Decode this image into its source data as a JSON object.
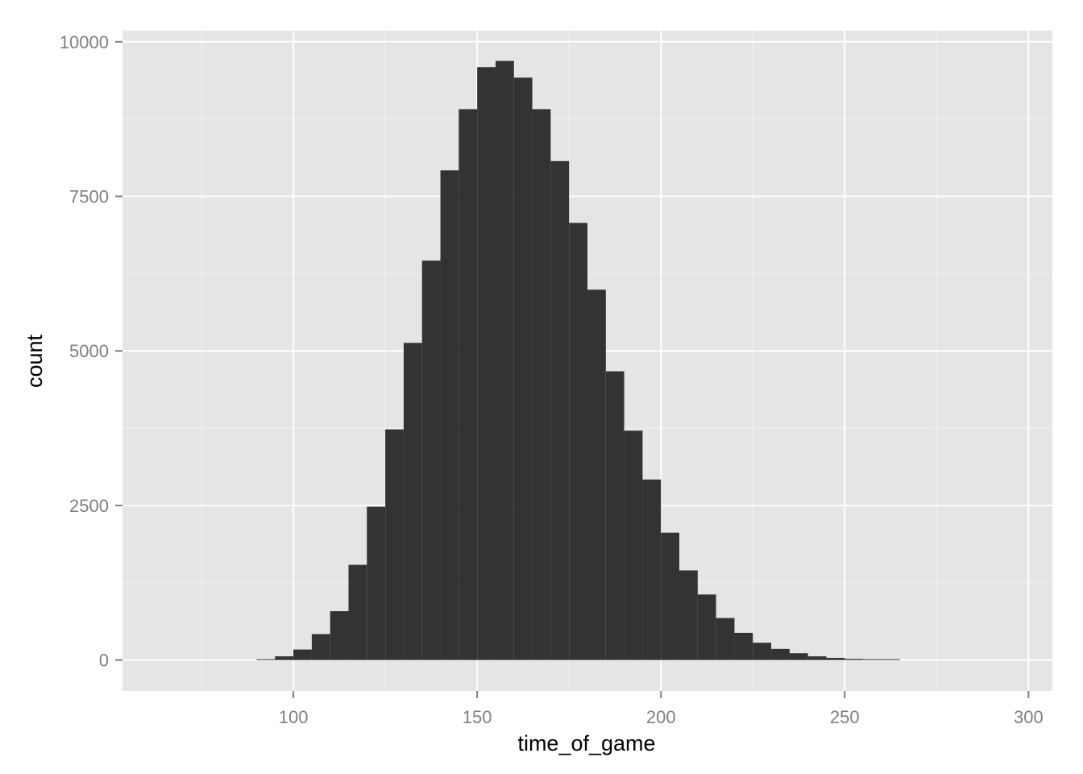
{
  "chart_data": {
    "type": "bar",
    "subtype": "histogram",
    "xlabel": "time_of_game",
    "ylabel": "count",
    "xlim": [
      53.5,
      306.5
    ],
    "ylim": [
      -500,
      10180
    ],
    "x_ticks": [
      100,
      150,
      200,
      250,
      300
    ],
    "x_tick_labels": [
      "100",
      "150",
      "200",
      "250",
      "300"
    ],
    "y_ticks": [
      0,
      2500,
      5000,
      7500,
      10000
    ],
    "y_tick_labels": [
      "0",
      "2500",
      "5000",
      "7500",
      "10000"
    ],
    "grid": true,
    "bin_width": 5,
    "bins": [
      {
        "x0": 90,
        "x1": 95,
        "count": 10
      },
      {
        "x0": 95,
        "x1": 100,
        "count": 60
      },
      {
        "x0": 100,
        "x1": 105,
        "count": 170
      },
      {
        "x0": 105,
        "x1": 110,
        "count": 420
      },
      {
        "x0": 110,
        "x1": 115,
        "count": 790
      },
      {
        "x0": 115,
        "x1": 120,
        "count": 1540
      },
      {
        "x0": 120,
        "x1": 125,
        "count": 2480
      },
      {
        "x0": 125,
        "x1": 130,
        "count": 3730
      },
      {
        "x0": 130,
        "x1": 135,
        "count": 5130
      },
      {
        "x0": 135,
        "x1": 140,
        "count": 6460
      },
      {
        "x0": 140,
        "x1": 145,
        "count": 7920
      },
      {
        "x0": 145,
        "x1": 150,
        "count": 8910
      },
      {
        "x0": 150,
        "x1": 155,
        "count": 9590
      },
      {
        "x0": 155,
        "x1": 160,
        "count": 9690
      },
      {
        "x0": 160,
        "x1": 165,
        "count": 9420
      },
      {
        "x0": 165,
        "x1": 170,
        "count": 8910
      },
      {
        "x0": 170,
        "x1": 175,
        "count": 8070
      },
      {
        "x0": 175,
        "x1": 180,
        "count": 7070
      },
      {
        "x0": 180,
        "x1": 185,
        "count": 5990
      },
      {
        "x0": 185,
        "x1": 190,
        "count": 4670
      },
      {
        "x0": 190,
        "x1": 195,
        "count": 3710
      },
      {
        "x0": 195,
        "x1": 200,
        "count": 2920
      },
      {
        "x0": 200,
        "x1": 205,
        "count": 2060
      },
      {
        "x0": 205,
        "x1": 210,
        "count": 1450
      },
      {
        "x0": 210,
        "x1": 215,
        "count": 1060
      },
      {
        "x0": 215,
        "x1": 220,
        "count": 680
      },
      {
        "x0": 220,
        "x1": 225,
        "count": 440
      },
      {
        "x0": 225,
        "x1": 230,
        "count": 280
      },
      {
        "x0": 230,
        "x1": 235,
        "count": 180
      },
      {
        "x0": 235,
        "x1": 240,
        "count": 110
      },
      {
        "x0": 240,
        "x1": 245,
        "count": 60
      },
      {
        "x0": 245,
        "x1": 250,
        "count": 35
      },
      {
        "x0": 250,
        "x1": 255,
        "count": 18
      },
      {
        "x0": 255,
        "x1": 260,
        "count": 8
      },
      {
        "x0": 260,
        "x1": 265,
        "count": 5
      }
    ],
    "colors": {
      "panel_background": "#e5e5e5",
      "major_grid": "#ffffff",
      "minor_grid": "#f2f2f2",
      "bar_fill": "#333333",
      "tick_label": "#7f7f7f",
      "axis_title": "#000000"
    }
  }
}
